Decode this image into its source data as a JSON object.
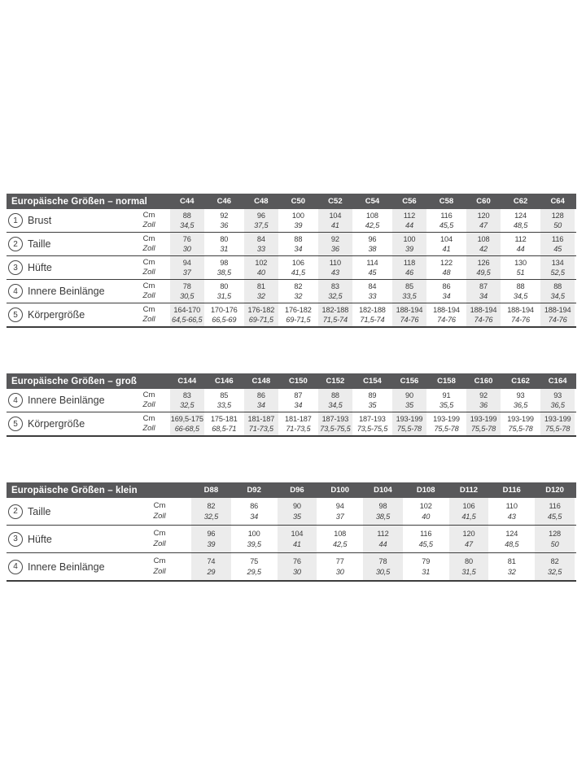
{
  "colors": {
    "header_bar": "#58585a",
    "header_text": "#ffffff",
    "column_stripe": "#ececec",
    "rule": "#3d3d3d",
    "text": "#3a3a3a"
  },
  "units": {
    "cm": "Cm",
    "zoll": "Zoll"
  },
  "tables": [
    {
      "title": "Europäische Größen – normal",
      "columns": [
        "C44",
        "C46",
        "C48",
        "C50",
        "C52",
        "C54",
        "C56",
        "C58",
        "C60",
        "C62",
        "C64"
      ],
      "rows": [
        {
          "num": "1",
          "label": "Brust",
          "cm": [
            "88",
            "92",
            "96",
            "100",
            "104",
            "108",
            "112",
            "116",
            "120",
            "124",
            "128"
          ],
          "zoll": [
            "34,5",
            "36",
            "37,5",
            "39",
            "41",
            "42,5",
            "44",
            "45,5",
            "47",
            "48,5",
            "50"
          ]
        },
        {
          "num": "2",
          "label": "Taille",
          "cm": [
            "76",
            "80",
            "84",
            "88",
            "92",
            "96",
            "100",
            "104",
            "108",
            "112",
            "116"
          ],
          "zoll": [
            "30",
            "31",
            "33",
            "34",
            "36",
            "38",
            "39",
            "41",
            "42",
            "44",
            "45"
          ]
        },
        {
          "num": "3",
          "label": "Hüfte",
          "cm": [
            "94",
            "98",
            "102",
            "106",
            "110",
            "114",
            "118",
            "122",
            "126",
            "130",
            "134"
          ],
          "zoll": [
            "37",
            "38,5",
            "40",
            "41,5",
            "43",
            "45",
            "46",
            "48",
            "49,5",
            "51",
            "52,5"
          ]
        },
        {
          "num": "4",
          "label": "Innere Beinlänge",
          "cm": [
            "78",
            "80",
            "81",
            "82",
            "83",
            "84",
            "85",
            "86",
            "87",
            "88",
            "88"
          ],
          "zoll": [
            "30,5",
            "31,5",
            "32",
            "32",
            "32,5",
            "33",
            "33,5",
            "34",
            "34",
            "34,5",
            "34,5"
          ]
        },
        {
          "num": "5",
          "label": "Körpergröße",
          "cm": [
            "164-170",
            "170-176",
            "176-182",
            "176-182",
            "182-188",
            "182-188",
            "188-194",
            "188-194",
            "188-194",
            "188-194",
            "188-194"
          ],
          "zoll": [
            "64,5-66,5",
            "66,5-69",
            "69-71,5",
            "69-71,5",
            "71,5-74",
            "71,5-74",
            "74-76",
            "74-76",
            "74-76",
            "74-76",
            "74-76"
          ]
        }
      ]
    },
    {
      "title": "Europäische Größen – groß",
      "columns": [
        "C144",
        "C146",
        "C148",
        "C150",
        "C152",
        "C154",
        "C156",
        "C158",
        "C160",
        "C162",
        "C164"
      ],
      "rows": [
        {
          "num": "4",
          "label": "Innere Beinlänge",
          "cm": [
            "83",
            "85",
            "86",
            "87",
            "88",
            "89",
            "90",
            "91",
            "92",
            "93",
            "93"
          ],
          "zoll": [
            "32,5",
            "33,5",
            "34",
            "34",
            "34,5",
            "35",
            "35",
            "35,5",
            "36",
            "36,5",
            "36,5"
          ]
        },
        {
          "num": "5",
          "label": "Körpergröße",
          "cm": [
            "169,5-175",
            "175-181",
            "181-187",
            "181-187",
            "187-193",
            "187-193",
            "193-199",
            "193-199",
            "193-199",
            "193-199",
            "193-199"
          ],
          "zoll": [
            "66-68,5",
            "68,5-71",
            "71-73,5",
            "71-73,5",
            "73,5-75,5",
            "73,5-75,5",
            "75,5-78",
            "75,5-78",
            "75,5-78",
            "75,5-78",
            "75,5-78"
          ]
        }
      ]
    },
    {
      "title": "Europäische Größen – klein",
      "columns": [
        "D88",
        "D92",
        "D96",
        "D100",
        "D104",
        "D108",
        "D112",
        "D116",
        "D120"
      ],
      "rows": [
        {
          "num": "2",
          "label": "Taille",
          "cm": [
            "82",
            "86",
            "90",
            "94",
            "98",
            "102",
            "106",
            "110",
            "116"
          ],
          "zoll": [
            "32,5",
            "34",
            "35",
            "37",
            "38,5",
            "40",
            "41,5",
            "43",
            "45,5"
          ]
        },
        {
          "num": "3",
          "label": "Hüfte",
          "cm": [
            "96",
            "100",
            "104",
            "108",
            "112",
            "116",
            "120",
            "124",
            "128"
          ],
          "zoll": [
            "39",
            "39,5",
            "41",
            "42,5",
            "44",
            "45,5",
            "47",
            "48,5",
            "50"
          ]
        },
        {
          "num": "4",
          "label": "Innere Beinlänge",
          "cm": [
            "74",
            "75",
            "76",
            "77",
            "78",
            "79",
            "80",
            "81",
            "82"
          ],
          "zoll": [
            "29",
            "29,5",
            "30",
            "30",
            "30,5",
            "31",
            "31,5",
            "32",
            "32,5"
          ]
        }
      ]
    }
  ]
}
